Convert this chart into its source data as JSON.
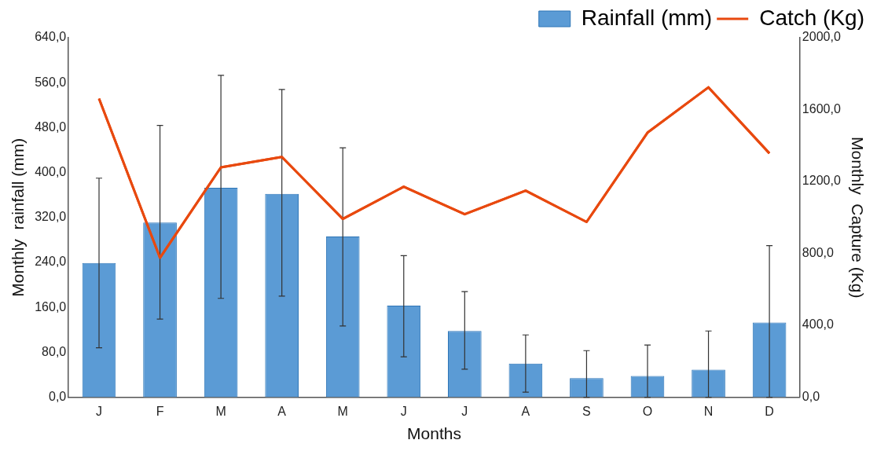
{
  "chart_data": {
    "type": "bar",
    "xlabel": "Months",
    "ylabel": "Monthly  rainfall (mm)",
    "y2label": "Monthly  Capture (Kg)",
    "categories": [
      "J",
      "F",
      "M",
      "A",
      "M",
      "J",
      "J",
      "A",
      "S",
      "O",
      "N",
      "D"
    ],
    "series": [
      {
        "name": "Rainfall (mm)",
        "color": "#5b9bd5",
        "values": [
          239,
          311,
          373,
          362,
          286,
          163,
          118,
          60,
          34,
          38,
          49,
          133
        ],
        "errors": [
          [
            88,
            390
          ],
          [
            139,
            484
          ],
          [
            176,
            573
          ],
          [
            180,
            548
          ],
          [
            127,
            444
          ],
          [
            72,
            252
          ],
          [
            50,
            188
          ],
          [
            9,
            111
          ],
          [
            0,
            83
          ],
          [
            0,
            93
          ],
          [
            0,
            118
          ],
          [
            0,
            270
          ]
        ]
      },
      {
        "name": "Catch (Kg)",
        "type": "line",
        "axis": "y2",
        "color": "#e8490f",
        "values": [
          1661,
          776,
          1279,
          1337,
          992,
          1171,
          1018,
          1149,
          975,
          1472,
          1724,
          1357
        ]
      }
    ],
    "ylim": [
      0,
      640
    ],
    "yticks": [
      {
        "value": 0,
        "label": "0,0"
      },
      {
        "value": 80,
        "label": "80,0"
      },
      {
        "value": 160,
        "label": "160,0"
      },
      {
        "value": 240,
        "label": "240,0"
      },
      {
        "value": 320,
        "label": "320,0"
      },
      {
        "value": 400,
        "label": "400,0"
      },
      {
        "value": 480,
        "label": "480,0"
      },
      {
        "value": 560,
        "label": "560,0"
      },
      {
        "value": 640,
        "label": "640,0"
      }
    ],
    "y2lim": [
      0,
      2000
    ],
    "y2ticks": [
      {
        "value": 0,
        "label": "0,0"
      },
      {
        "value": 400,
        "label": "400,0"
      },
      {
        "value": 800,
        "label": "800,0"
      },
      {
        "value": 1200,
        "label": "1200,0"
      },
      {
        "value": 1600,
        "label": "1600,0"
      },
      {
        "value": 2000,
        "label": "2000,0"
      }
    ],
    "grid": false,
    "legend": "top right",
    "marker": "none",
    "line_style": "solid"
  }
}
